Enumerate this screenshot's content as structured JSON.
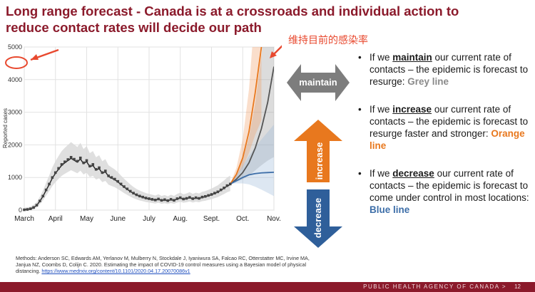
{
  "title": "Long range forecast - Canada is at a crossroads and individual action to reduce contact rates will decide our path",
  "annotation_cn": "维持目前的感染率",
  "arrows": {
    "maintain": "maintain",
    "increase": "increase",
    "decrease": "decrease"
  },
  "bullets": [
    {
      "pre": "If we ",
      "kw": "maintain",
      "mid": " our current rate of contacts – the epidemic is forecast to resurge: ",
      "end": "Grey line"
    },
    {
      "pre": "If we ",
      "kw": "increase",
      "mid": " our current rate of contacts – the epidemic is forecast to resurge faster and stronger: ",
      "end": "Orange line"
    },
    {
      "pre": "If we ",
      "kw": "decrease",
      "mid": " our current rate of contacts – the epidemic is forecast to come under control in most locations: ",
      "end": "Blue line"
    }
  ],
  "methods": "Methods: Anderson SC, Edwards AM, Yerlanov M, Mulberry N, Stockdale J, Iyaniwura SA, Falcao RC, Otterstatter MC, Irvine MA, Janjua NZ, Coombs D, Colijn C. 2020. Estimating the impact of COVID-19 control measures using a Bayesian model of physical distancing. ",
  "methods_link": "https://www.medrxiv.org/content/10.1101/2020.04.17.20070086v1",
  "footer": "PUBLIC HEALTH AGENCY OF CANADA >",
  "page_number": "12",
  "colors": {
    "grey": "#8a8a8a",
    "orange": "#e8781e",
    "blue": "#3d6ea8",
    "title": "#8b1a2b",
    "annotation": "#e8492f"
  },
  "chart_data": {
    "type": "line",
    "ylabel": "Reported cases",
    "xlabel": "",
    "ylim": [
      0,
      5000
    ],
    "yticks": [
      0,
      1000,
      2000,
      3000,
      4000,
      5000
    ],
    "xticks": [
      "March",
      "April",
      "May",
      "June",
      "July",
      "Aug.",
      "Sept.",
      "Oct.",
      "Nov."
    ],
    "grid": true,
    "observed": [
      [
        0.0,
        10
      ],
      [
        0.1,
        20
      ],
      [
        0.2,
        40
      ],
      [
        0.3,
        80
      ],
      [
        0.4,
        150
      ],
      [
        0.5,
        280
      ],
      [
        0.6,
        430
      ],
      [
        0.7,
        620
      ],
      [
        0.8,
        800
      ],
      [
        0.9,
        1000
      ],
      [
        1.0,
        1150
      ],
      [
        1.1,
        1280
      ],
      [
        1.2,
        1400
      ],
      [
        1.3,
        1480
      ],
      [
        1.4,
        1550
      ],
      [
        1.5,
        1620
      ],
      [
        1.6,
        1560
      ],
      [
        1.7,
        1500
      ],
      [
        1.8,
        1600
      ],
      [
        1.9,
        1450
      ],
      [
        2.0,
        1520
      ],
      [
        2.1,
        1350
      ],
      [
        2.2,
        1400
      ],
      [
        2.3,
        1250
      ],
      [
        2.4,
        1300
      ],
      [
        2.5,
        1150
      ],
      [
        2.6,
        1200
      ],
      [
        2.7,
        1050
      ],
      [
        2.8,
        1000
      ],
      [
        2.9,
        950
      ],
      [
        3.0,
        880
      ],
      [
        3.1,
        800
      ],
      [
        3.2,
        720
      ],
      [
        3.3,
        650
      ],
      [
        3.4,
        580
      ],
      [
        3.5,
        520
      ],
      [
        3.6,
        470
      ],
      [
        3.7,
        430
      ],
      [
        3.8,
        400
      ],
      [
        3.9,
        370
      ],
      [
        4.0,
        350
      ],
      [
        4.1,
        330
      ],
      [
        4.2,
        310
      ],
      [
        4.3,
        340
      ],
      [
        4.4,
        300
      ],
      [
        4.5,
        320
      ],
      [
        4.6,
        290
      ],
      [
        4.7,
        330
      ],
      [
        4.8,
        300
      ],
      [
        4.9,
        350
      ],
      [
        5.0,
        380
      ],
      [
        5.1,
        340
      ],
      [
        5.2,
        360
      ],
      [
        5.3,
        390
      ],
      [
        5.4,
        350
      ],
      [
        5.5,
        380
      ],
      [
        5.6,
        360
      ],
      [
        5.7,
        400
      ],
      [
        5.8,
        420
      ],
      [
        5.9,
        450
      ],
      [
        6.0,
        480
      ],
      [
        6.1,
        520
      ],
      [
        6.2,
        560
      ],
      [
        6.3,
        620
      ],
      [
        6.4,
        680
      ],
      [
        6.5,
        750
      ],
      [
        6.6,
        800
      ]
    ],
    "series": [
      {
        "name": "maintain",
        "color": "#555555",
        "x": [
          6.6,
          6.8,
          7.0,
          7.2,
          7.4,
          7.6,
          7.8,
          8.0
        ],
        "values": [
          800,
          950,
          1150,
          1450,
          1900,
          2500,
          3300,
          4400
        ]
      },
      {
        "name": "increase",
        "color": "#e8781e",
        "x": [
          6.6,
          6.8,
          7.0,
          7.2,
          7.4,
          7.6
        ],
        "values": [
          800,
          1100,
          1600,
          2400,
          3600,
          5000
        ]
      },
      {
        "name": "decrease",
        "color": "#3d6ea8",
        "x": [
          6.6,
          6.8,
          7.0,
          7.2,
          7.4,
          7.6,
          7.8,
          8.0
        ],
        "values": [
          800,
          900,
          1000,
          1080,
          1120,
          1140,
          1150,
          1160
        ]
      }
    ]
  }
}
